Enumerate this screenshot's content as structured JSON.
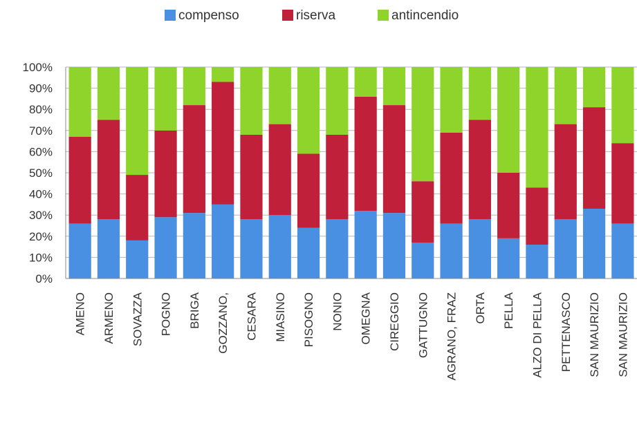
{
  "chart_data": {
    "type": "bar",
    "stacked": true,
    "percent": true,
    "title": "",
    "xlabel": "",
    "ylabel": "",
    "ylim": [
      0,
      100
    ],
    "yticks": [
      "0%",
      "10%",
      "20%",
      "30%",
      "40%",
      "50%",
      "60%",
      "70%",
      "80%",
      "90%",
      "100%"
    ],
    "grid": true,
    "legend_position": "top",
    "categories": [
      "AMENO",
      "ARMENO",
      "SOVAZZA",
      "POGNO",
      "BRIGA",
      "GOZZANO,",
      "CESARA",
      "MIASINO",
      "PISOGNO",
      "NONIO",
      "OMEGNA",
      "CIREGGIO",
      "GATTUGNO",
      "AGRANO, FRAZ",
      "ORTA",
      "PELLA",
      "ALZO DI PELLA",
      "PETTENASCO",
      "SAN MAURIZIO",
      "SAN MAURIZIO"
    ],
    "series": [
      {
        "name": "compenso",
        "color": "#4a90e2",
        "values": [
          26,
          28,
          18,
          29,
          31,
          35,
          28,
          30,
          24,
          28,
          32,
          31,
          17,
          26,
          28,
          19,
          16,
          28,
          33,
          26
        ]
      },
      {
        "name": "riserva",
        "color": "#c0203a",
        "values": [
          41,
          47,
          31,
          41,
          51,
          58,
          40,
          43,
          35,
          40,
          54,
          51,
          29,
          43,
          47,
          31,
          27,
          45,
          48,
          38
        ]
      },
      {
        "name": "antincendio",
        "color": "#8fd42a",
        "values": [
          33,
          25,
          51,
          30,
          18,
          7,
          32,
          27,
          41,
          32,
          14,
          18,
          54,
          31,
          25,
          50,
          57,
          27,
          19,
          36
        ]
      }
    ]
  }
}
